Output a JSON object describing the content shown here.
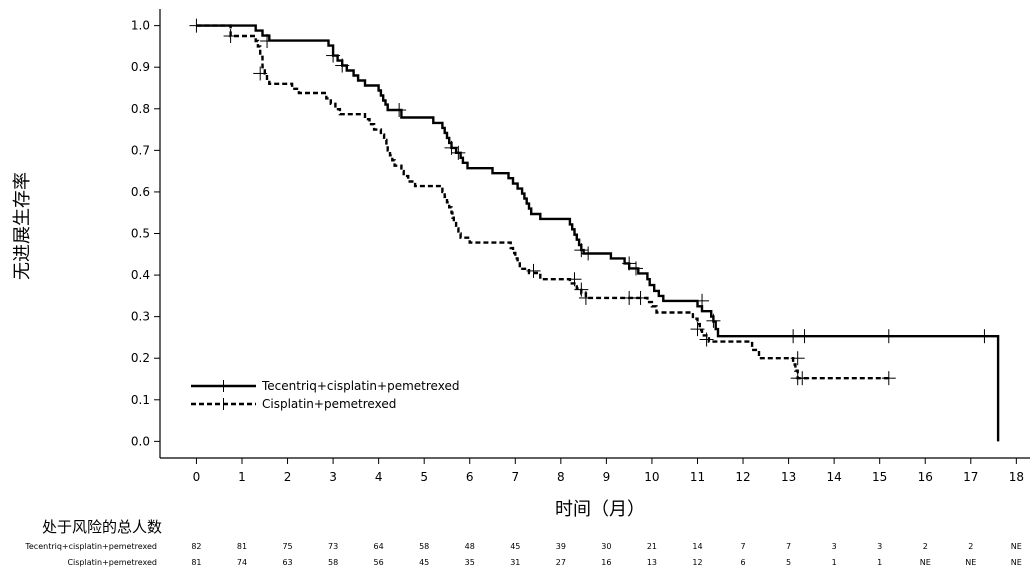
{
  "chart_data": {
    "type": "line",
    "subtype": "kaplan-meier",
    "ylabel": "无进展生存率",
    "xlabel": "时间（月）",
    "xlim": [
      -0.8,
      18.3
    ],
    "ylim": [
      -0.04,
      1.04
    ],
    "x_ticks": [
      0,
      1,
      2,
      3,
      4,
      5,
      6,
      7,
      8,
      9,
      10,
      11,
      12,
      13,
      14,
      15,
      16,
      17,
      18
    ],
    "y_ticks": [
      0.0,
      0.1,
      0.2,
      0.3,
      0.4,
      0.5,
      0.6,
      0.7,
      0.8,
      0.9,
      1.0
    ],
    "y_tick_labels": [
      "0.0",
      "0.1",
      "0.2",
      "0.3",
      "0.4",
      "0.5",
      "0.6",
      "0.7",
      "0.8",
      "0.9",
      "1.0"
    ],
    "legend_position": "lower-left",
    "series": [
      {
        "name": "Tecentriq+cisplatin+pemetrexed",
        "style": "solid",
        "color": "#000000",
        "steps": [
          [
            0,
            1.0
          ],
          [
            1.3,
            0.988
          ],
          [
            1.45,
            0.976
          ],
          [
            1.6,
            0.964
          ],
          [
            2.9,
            0.952
          ],
          [
            3.0,
            0.928
          ],
          [
            3.1,
            0.916
          ],
          [
            3.2,
            0.904
          ],
          [
            3.3,
            0.892
          ],
          [
            3.45,
            0.88
          ],
          [
            3.55,
            0.868
          ],
          [
            3.7,
            0.856
          ],
          [
            4.0,
            0.844
          ],
          [
            4.05,
            0.832
          ],
          [
            4.1,
            0.82
          ],
          [
            4.15,
            0.81
          ],
          [
            4.2,
            0.797
          ],
          [
            4.5,
            0.779
          ],
          [
            5.2,
            0.766
          ],
          [
            5.4,
            0.754
          ],
          [
            5.45,
            0.742
          ],
          [
            5.5,
            0.73
          ],
          [
            5.55,
            0.718
          ],
          [
            5.6,
            0.706
          ],
          [
            5.7,
            0.694
          ],
          [
            5.8,
            0.682
          ],
          [
            5.85,
            0.67
          ],
          [
            5.95,
            0.657
          ],
          [
            6.5,
            0.645
          ],
          [
            6.85,
            0.633
          ],
          [
            6.95,
            0.62
          ],
          [
            7.05,
            0.608
          ],
          [
            7.15,
            0.596
          ],
          [
            7.2,
            0.584
          ],
          [
            7.25,
            0.572
          ],
          [
            7.3,
            0.56
          ],
          [
            7.35,
            0.547
          ],
          [
            7.55,
            0.535
          ],
          [
            8.2,
            0.522
          ],
          [
            8.25,
            0.51
          ],
          [
            8.3,
            0.497
          ],
          [
            8.35,
            0.485
          ],
          [
            8.4,
            0.472
          ],
          [
            8.45,
            0.46
          ],
          [
            8.5,
            0.452
          ],
          [
            9.1,
            0.44
          ],
          [
            9.4,
            0.428
          ],
          [
            9.5,
            0.416
          ],
          [
            9.7,
            0.404
          ],
          [
            9.9,
            0.39
          ],
          [
            9.95,
            0.376
          ],
          [
            10.05,
            0.362
          ],
          [
            10.15,
            0.35
          ],
          [
            10.25,
            0.338
          ],
          [
            11.0,
            0.325
          ],
          [
            11.1,
            0.313
          ],
          [
            11.3,
            0.3
          ],
          [
            11.35,
            0.288
          ],
          [
            11.4,
            0.27
          ],
          [
            11.45,
            0.253
          ],
          [
            17.6,
            0.253
          ],
          [
            17.6,
            0.0
          ]
        ],
        "censors": [
          [
            0,
            1.0
          ],
          [
            3.0,
            0.928
          ],
          [
            3.2,
            0.904
          ],
          [
            4.45,
            0.797
          ],
          [
            5.6,
            0.706
          ],
          [
            5.75,
            0.694
          ],
          [
            8.45,
            0.46
          ],
          [
            8.6,
            0.452
          ],
          [
            9.5,
            0.428
          ],
          [
            9.65,
            0.416
          ],
          [
            11.1,
            0.338
          ],
          [
            11.35,
            0.29
          ],
          [
            13.1,
            0.253
          ],
          [
            13.35,
            0.253
          ],
          [
            15.2,
            0.253
          ],
          [
            17.3,
            0.253
          ]
        ]
      },
      {
        "name": "Cisplatin+pemetrexed",
        "style": "dashed",
        "color": "#000000",
        "steps": [
          [
            0,
            1.0
          ],
          [
            0.75,
            0.975
          ],
          [
            1.3,
            0.963
          ],
          [
            1.35,
            0.95
          ],
          [
            1.4,
            0.925
          ],
          [
            1.45,
            0.9
          ],
          [
            1.5,
            0.885
          ],
          [
            1.55,
            0.872
          ],
          [
            1.6,
            0.86
          ],
          [
            2.1,
            0.848
          ],
          [
            2.25,
            0.838
          ],
          [
            2.85,
            0.825
          ],
          [
            2.95,
            0.812
          ],
          [
            3.05,
            0.799
          ],
          [
            3.15,
            0.787
          ],
          [
            3.7,
            0.775
          ],
          [
            3.8,
            0.763
          ],
          [
            3.9,
            0.75
          ],
          [
            4.05,
            0.738
          ],
          [
            4.12,
            0.725
          ],
          [
            4.17,
            0.713
          ],
          [
            4.2,
            0.7
          ],
          [
            4.25,
            0.688
          ],
          [
            4.3,
            0.676
          ],
          [
            4.35,
            0.663
          ],
          [
            4.5,
            0.65
          ],
          [
            4.55,
            0.638
          ],
          [
            4.65,
            0.625
          ],
          [
            4.8,
            0.614
          ],
          [
            5.4,
            0.6
          ],
          [
            5.45,
            0.588
          ],
          [
            5.5,
            0.575
          ],
          [
            5.55,
            0.563
          ],
          [
            5.6,
            0.55
          ],
          [
            5.62,
            0.538
          ],
          [
            5.65,
            0.525
          ],
          [
            5.7,
            0.512
          ],
          [
            5.75,
            0.5
          ],
          [
            5.8,
            0.49
          ],
          [
            6.0,
            0.478
          ],
          [
            6.9,
            0.465
          ],
          [
            6.95,
            0.453
          ],
          [
            7.0,
            0.44
          ],
          [
            7.05,
            0.428
          ],
          [
            7.1,
            0.415
          ],
          [
            7.3,
            0.405
          ],
          [
            7.55,
            0.39
          ],
          [
            8.2,
            0.38
          ],
          [
            8.35,
            0.368
          ],
          [
            8.45,
            0.356
          ],
          [
            8.55,
            0.345
          ],
          [
            9.9,
            0.335
          ],
          [
            10.0,
            0.325
          ],
          [
            10.1,
            0.31
          ],
          [
            10.9,
            0.295
          ],
          [
            11.0,
            0.282
          ],
          [
            11.05,
            0.268
          ],
          [
            11.1,
            0.255
          ],
          [
            11.25,
            0.24
          ],
          [
            12.2,
            0.22
          ],
          [
            12.35,
            0.2
          ],
          [
            13.1,
            0.185
          ],
          [
            13.15,
            0.17
          ],
          [
            13.2,
            0.152
          ],
          [
            15.2,
            0.152
          ]
        ],
        "censors": [
          [
            0.75,
            0.975
          ],
          [
            1.55,
            0.963
          ],
          [
            1.4,
            0.885
          ],
          [
            7.4,
            0.41
          ],
          [
            8.3,
            0.39
          ],
          [
            8.45,
            0.365
          ],
          [
            8.55,
            0.345
          ],
          [
            9.5,
            0.345
          ],
          [
            9.75,
            0.345
          ],
          [
            11.0,
            0.27
          ],
          [
            11.2,
            0.245
          ],
          [
            13.2,
            0.2
          ],
          [
            13.2,
            0.152
          ],
          [
            13.3,
            0.152
          ],
          [
            15.2,
            0.152
          ]
        ]
      }
    ]
  },
  "risk_table": {
    "title": "处于风险的总人数",
    "rows": [
      {
        "label": "Tecentriq+cisplatin+pemetrexed",
        "values": [
          "82",
          "81",
          "75",
          "73",
          "64",
          "58",
          "48",
          "45",
          "39",
          "30",
          "21",
          "14",
          "7",
          "7",
          "3",
          "3",
          "2",
          "2",
          "NE"
        ]
      },
      {
        "label": "Cisplatin+pemetrexed",
        "values": [
          "81",
          "74",
          "63",
          "58",
          "56",
          "45",
          "35",
          "31",
          "27",
          "16",
          "13",
          "12",
          "6",
          "5",
          "1",
          "1",
          "NE",
          "NE",
          "NE"
        ]
      }
    ]
  }
}
